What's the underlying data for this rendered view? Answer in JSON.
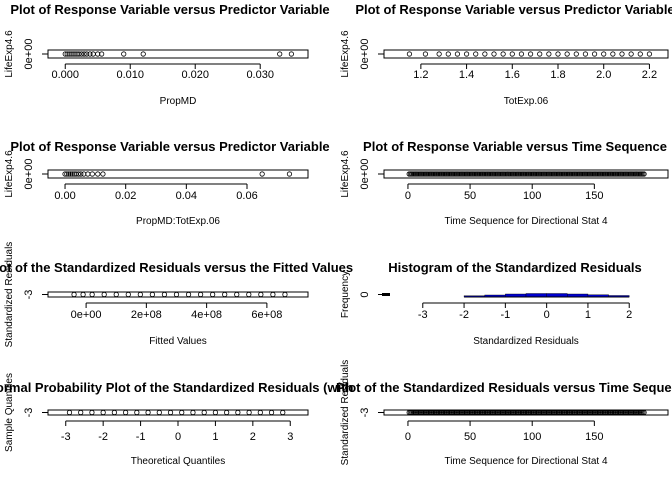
{
  "chart_data": [
    {
      "type": "scatter",
      "title": "Plot of Response Variable versus Predictor Variable",
      "xlabel": "PropMD",
      "ylabel": "LifeExp4.6",
      "xlim": [
        -0.0005,
        0.0352
      ],
      "xticks": [
        0.0,
        0.01,
        0.02,
        0.03
      ],
      "xtick_labels": [
        "0.000",
        "0.010",
        "0.020",
        "0.030"
      ],
      "ytick_labels": [
        "0e+00"
      ],
      "points": [
        {
          "x": 0.0,
          "y": 0
        },
        {
          "x": 0.0003,
          "y": 0
        },
        {
          "x": 0.0006,
          "y": 0
        },
        {
          "x": 0.0009,
          "y": 0
        },
        {
          "x": 0.0012,
          "y": 0
        },
        {
          "x": 0.0015,
          "y": 0
        },
        {
          "x": 0.0018,
          "y": 0
        },
        {
          "x": 0.0021,
          "y": 0
        },
        {
          "x": 0.0025,
          "y": 0
        },
        {
          "x": 0.0029,
          "y": 0
        },
        {
          "x": 0.0033,
          "y": 0
        },
        {
          "x": 0.0038,
          "y": 0
        },
        {
          "x": 0.0043,
          "y": 0
        },
        {
          "x": 0.005,
          "y": 0
        },
        {
          "x": 0.0056,
          "y": 0
        },
        {
          "x": 0.009,
          "y": 0
        },
        {
          "x": 0.012,
          "y": 0
        },
        {
          "x": 0.033,
          "y": 0
        },
        {
          "x": 0.0348,
          "y": 0
        }
      ]
    },
    {
      "type": "scatter",
      "title": "Plot of Response Variable versus Predictor Variable",
      "xlabel": "TotExp.06",
      "ylabel": "LifeExp4.6",
      "xlim": [
        1.1,
        2.22
      ],
      "xticks": [
        1.2,
        1.4,
        1.6,
        1.8,
        2.0,
        2.2
      ],
      "xtick_labels": [
        "1.2",
        "1.4",
        "1.6",
        "1.8",
        "2.0",
        "2.2"
      ],
      "ytick_labels": [
        "0e+00"
      ],
      "points": [
        {
          "x": 1.15,
          "y": 0
        },
        {
          "x": 1.22,
          "y": 0
        },
        {
          "x": 1.28,
          "y": 0
        },
        {
          "x": 1.32,
          "y": 0
        },
        {
          "x": 1.36,
          "y": 0
        },
        {
          "x": 1.4,
          "y": 0
        },
        {
          "x": 1.44,
          "y": 0
        },
        {
          "x": 1.48,
          "y": 0
        },
        {
          "x": 1.52,
          "y": 0
        },
        {
          "x": 1.56,
          "y": 0
        },
        {
          "x": 1.6,
          "y": 0
        },
        {
          "x": 1.64,
          "y": 0
        },
        {
          "x": 1.68,
          "y": 0
        },
        {
          "x": 1.72,
          "y": 0
        },
        {
          "x": 1.76,
          "y": 0
        },
        {
          "x": 1.8,
          "y": 0
        },
        {
          "x": 1.84,
          "y": 0
        },
        {
          "x": 1.88,
          "y": 0
        },
        {
          "x": 1.92,
          "y": 0
        },
        {
          "x": 1.96,
          "y": 0
        },
        {
          "x": 2.0,
          "y": 0
        },
        {
          "x": 2.04,
          "y": 0
        },
        {
          "x": 2.08,
          "y": 0
        },
        {
          "x": 2.12,
          "y": 0
        },
        {
          "x": 2.16,
          "y": 0
        },
        {
          "x": 2.2,
          "y": 0
        }
      ]
    },
    {
      "type": "scatter",
      "title": "Plot of Response Variable versus Predictor Variable",
      "xlabel": "PropMD:TotExp.06",
      "ylabel": "LifeExp4.6",
      "xlim": [
        -0.001,
        0.0755
      ],
      "xticks": [
        0.0,
        0.02,
        0.04,
        0.06
      ],
      "xtick_labels": [
        "0.00",
        "0.02",
        "0.04",
        "0.06"
      ],
      "ytick_labels": [
        "0e+00"
      ],
      "points": [
        {
          "x": 0.0,
          "y": 0
        },
        {
          "x": 0.0006,
          "y": 0
        },
        {
          "x": 0.0012,
          "y": 0
        },
        {
          "x": 0.0018,
          "y": 0
        },
        {
          "x": 0.0024,
          "y": 0
        },
        {
          "x": 0.003,
          "y": 0
        },
        {
          "x": 0.0036,
          "y": 0
        },
        {
          "x": 0.0044,
          "y": 0
        },
        {
          "x": 0.0052,
          "y": 0
        },
        {
          "x": 0.0062,
          "y": 0
        },
        {
          "x": 0.0075,
          "y": 0
        },
        {
          "x": 0.009,
          "y": 0
        },
        {
          "x": 0.0108,
          "y": 0
        },
        {
          "x": 0.0125,
          "y": 0
        },
        {
          "x": 0.065,
          "y": 0
        },
        {
          "x": 0.074,
          "y": 0
        }
      ]
    },
    {
      "type": "scatter",
      "title": "Plot of Response Variable versus Time Sequence",
      "xlabel": "Time Sequence for Directional Stat 4",
      "ylabel": "LifeExp4.6",
      "xlim": [
        -8,
        198
      ],
      "xticks": [
        0,
        50,
        100,
        150
      ],
      "xtick_labels": [
        "0",
        "50",
        "100",
        "150"
      ],
      "ytick_labels": [
        "0e+00"
      ],
      "x_range": [
        1,
        190
      ],
      "y_constant": 0
    },
    {
      "type": "scatter",
      "title": "Plot of the Standardized Residuals versus the Fitted Values",
      "xlabel": "Fitted Values",
      "ylabel": "Standardized Residuals",
      "xlim": [
        -80000000,
        690000000
      ],
      "xticks": [
        0,
        200000000,
        400000000,
        600000000
      ],
      "xtick_labels": [
        "0e+00",
        "2e+08",
        "4e+08",
        "6e+08"
      ],
      "ytick_labels": [
        "-3"
      ],
      "points": [
        {
          "x": -40000000,
          "y": -3
        },
        {
          "x": -10000000,
          "y": -3
        },
        {
          "x": 20000000,
          "y": -3
        },
        {
          "x": 60000000,
          "y": -3
        },
        {
          "x": 100000000,
          "y": -3
        },
        {
          "x": 140000000,
          "y": -3
        },
        {
          "x": 180000000,
          "y": -3
        },
        {
          "x": 220000000,
          "y": -3
        },
        {
          "x": 260000000,
          "y": -3
        },
        {
          "x": 300000000,
          "y": -3
        },
        {
          "x": 340000000,
          "y": -3
        },
        {
          "x": 380000000,
          "y": -3
        },
        {
          "x": 420000000,
          "y": -3
        },
        {
          "x": 460000000,
          "y": -3
        },
        {
          "x": 500000000,
          "y": -3
        },
        {
          "x": 540000000,
          "y": -3
        },
        {
          "x": 580000000,
          "y": -3
        },
        {
          "x": 620000000,
          "y": -3
        },
        {
          "x": 660000000,
          "y": -3
        }
      ]
    },
    {
      "type": "bar",
      "title": "Histogram of the Standardized Residuals",
      "xlabel": "Standardized Residuals",
      "ylabel": "Frequency",
      "xlim": [
        -3.6,
        2.6
      ],
      "xticks": [
        -3,
        -2,
        -1,
        0,
        1,
        2
      ],
      "xtick_labels": [
        "-3",
        "-2",
        "-1",
        "0",
        "1",
        "2"
      ],
      "ytick_labels": [
        "0"
      ],
      "bins": [
        {
          "from": -2.0,
          "to": -1.5,
          "count": 1
        },
        {
          "from": -1.5,
          "to": -1.0,
          "count": 4
        },
        {
          "from": -1.0,
          "to": -0.5,
          "count": 8
        },
        {
          "from": -0.5,
          "to": 0.0,
          "count": 10
        },
        {
          "from": 0.0,
          "to": 0.5,
          "count": 10
        },
        {
          "from": 0.5,
          "to": 1.0,
          "count": 8
        },
        {
          "from": 1.0,
          "to": 1.5,
          "count": 5
        },
        {
          "from": 1.5,
          "to": 2.0,
          "count": 2
        }
      ],
      "ylim": [
        0,
        100
      ],
      "bar_color": "#0000cd"
    },
    {
      "type": "scatter",
      "title": "Normal Probability Plot of the Standardized Residuals (with",
      "xlabel": "Theoretical Quantiles",
      "ylabel": "Sample Quantiles",
      "xlim": [
        -3.1,
        3.1
      ],
      "xticks": [
        -3,
        -2,
        -1,
        0,
        1,
        2,
        3
      ],
      "xtick_labels": [
        "-3",
        "-2",
        "-1",
        "0",
        "1",
        "2",
        "3"
      ],
      "ytick_labels": [
        "-3"
      ],
      "points": [
        {
          "x": -2.9,
          "y": -3
        },
        {
          "x": -2.6,
          "y": -3
        },
        {
          "x": -2.3,
          "y": -3
        },
        {
          "x": -2.0,
          "y": -3
        },
        {
          "x": -1.7,
          "y": -3
        },
        {
          "x": -1.4,
          "y": -3
        },
        {
          "x": -1.1,
          "y": -3
        },
        {
          "x": -0.8,
          "y": -3
        },
        {
          "x": -0.5,
          "y": -3
        },
        {
          "x": -0.2,
          "y": -3
        },
        {
          "x": 0.1,
          "y": -3
        },
        {
          "x": 0.4,
          "y": -3
        },
        {
          "x": 0.7,
          "y": -3
        },
        {
          "x": 1.0,
          "y": -3
        },
        {
          "x": 1.3,
          "y": -3
        },
        {
          "x": 1.6,
          "y": -3
        },
        {
          "x": 1.9,
          "y": -3
        },
        {
          "x": 2.2,
          "y": -3
        },
        {
          "x": 2.5,
          "y": -3
        },
        {
          "x": 2.8,
          "y": -3
        }
      ]
    },
    {
      "type": "scatter",
      "title": "Plot of the Standardized Residuals versus Time Sequence",
      "xlabel": "Time Sequence for Directional Stat 4",
      "ylabel": "Standardized Residuals",
      "xlim": [
        -8,
        198
      ],
      "xticks": [
        0,
        50,
        100,
        150
      ],
      "xtick_labels": [
        "0",
        "50",
        "100",
        "150"
      ],
      "ytick_labels": [
        "-3"
      ],
      "x_range": [
        1,
        190
      ],
      "y_constant": -3
    }
  ]
}
